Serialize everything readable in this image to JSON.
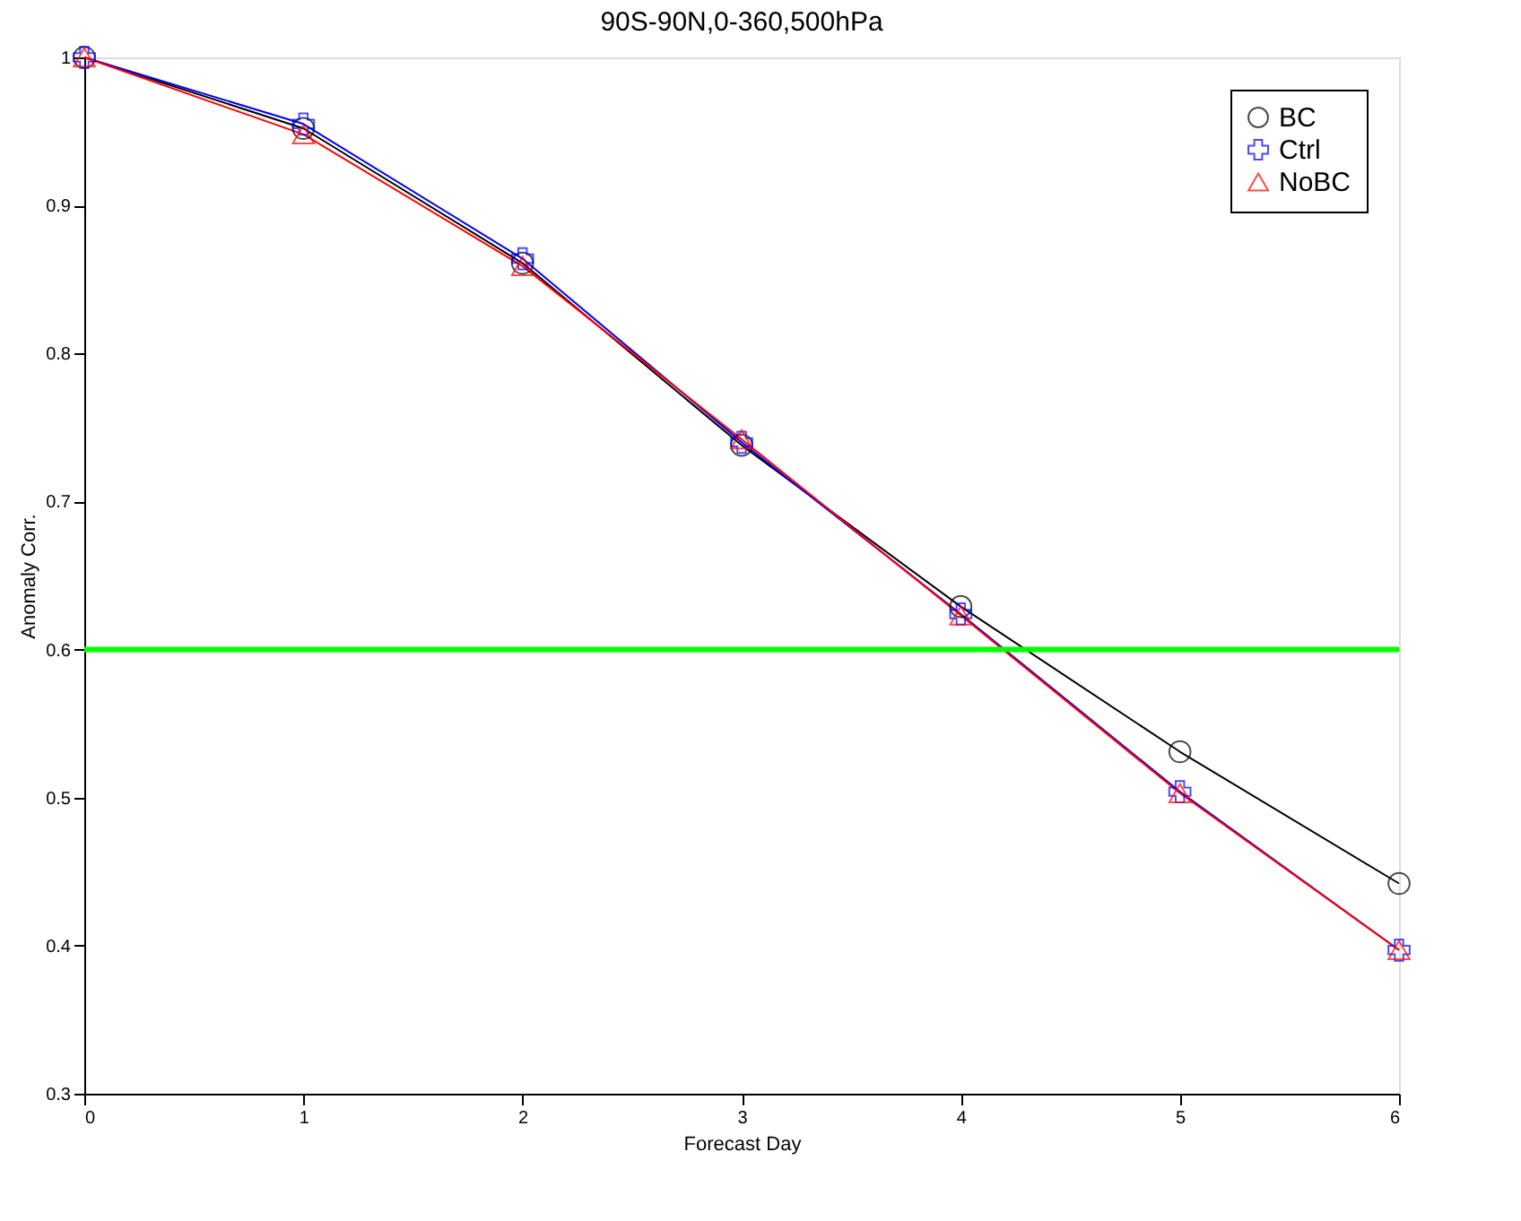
{
  "chart_data": {
    "type": "line",
    "title": "90S-90N,0-360,500hPa",
    "xlabel": "Forecast Day",
    "ylabel": "Anomaly Corr.",
    "x": [
      0,
      1,
      2,
      3,
      4,
      5,
      6
    ],
    "series": [
      {
        "name": "BC",
        "color": "#000000",
        "marker": "circle",
        "values": [
          1.0,
          0.952,
          0.861,
          0.738,
          0.629,
          0.531,
          0.442
        ]
      },
      {
        "name": "Ctrl",
        "color": "#0000ff",
        "marker": "cross",
        "values": [
          1.0,
          0.955,
          0.864,
          0.74,
          0.624,
          0.504,
          0.397
        ]
      },
      {
        "name": "NoBC",
        "color": "#ff0000",
        "marker": "triangle",
        "values": [
          1.0,
          0.948,
          0.859,
          0.742,
          0.623,
          0.503,
          0.397
        ]
      }
    ],
    "xlim": [
      0,
      6
    ],
    "xticks": [
      0,
      1,
      2,
      3,
      4,
      5,
      6
    ],
    "ylim": [
      0.3,
      1
    ],
    "yticks": [
      0.3,
      0.4,
      0.5,
      0.6,
      0.7,
      0.8,
      0.9,
      1
    ],
    "ref_lines": [
      {
        "axis": "y",
        "value": 0.6,
        "color": "#00ff00"
      }
    ],
    "grid": false,
    "legend": "top right",
    "line_style": "solid"
  }
}
